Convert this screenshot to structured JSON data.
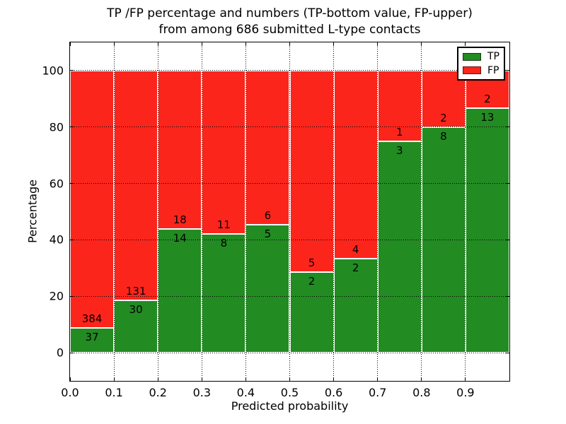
{
  "title": {
    "line1": "TP /FP percentage and numbers (TP-bottom value, FP-upper)",
    "line2": "from among 686 submitted L-type contacts"
  },
  "chart_data": {
    "type": "bar",
    "stacked": true,
    "normalized": "each bar scaled to 100 percent; numbers shown are raw counts",
    "title": "TP /FP percentage and numbers (TP-bottom value, FP-upper) from among 686 submitted L-type contacts",
    "xlabel": "Predicted probability",
    "ylabel": "Percentage",
    "categories": [
      "0.0-0.1",
      "0.1-0.2",
      "0.2-0.3",
      "0.3-0.4",
      "0.4-0.5",
      "0.5-0.6",
      "0.6-0.7",
      "0.7-0.8",
      "0.8-0.9",
      "0.9-1.0"
    ],
    "series": [
      {
        "name": "TP",
        "color": "#228b22",
        "values": [
          37,
          30,
          14,
          8,
          5,
          2,
          2,
          3,
          8,
          13
        ]
      },
      {
        "name": "FP",
        "color": "#fc251c",
        "values": [
          384,
          131,
          18,
          11,
          6,
          5,
          4,
          1,
          2,
          2
        ]
      }
    ],
    "tp_percent_heights": [
      8.8,
      18.6,
      43.8,
      42.1,
      45.5,
      28.6,
      33.3,
      75.0,
      80.0,
      86.7
    ],
    "total_contacts": 686,
    "xticks": [
      "0.0",
      "0.1",
      "0.2",
      "0.3",
      "0.4",
      "0.5",
      "0.6",
      "0.7",
      "0.8",
      "0.9"
    ],
    "yticks": [
      0,
      20,
      40,
      60,
      80,
      100
    ],
    "xlim": [
      0.0,
      1.0
    ],
    "ylim": [
      -10,
      110
    ],
    "grid": true,
    "grid_style": "dotted",
    "legend": {
      "position": "upper right",
      "entries": [
        {
          "label": "TP",
          "color": "#228b22"
        },
        {
          "label": "FP",
          "color": "#fc251c"
        }
      ]
    }
  }
}
